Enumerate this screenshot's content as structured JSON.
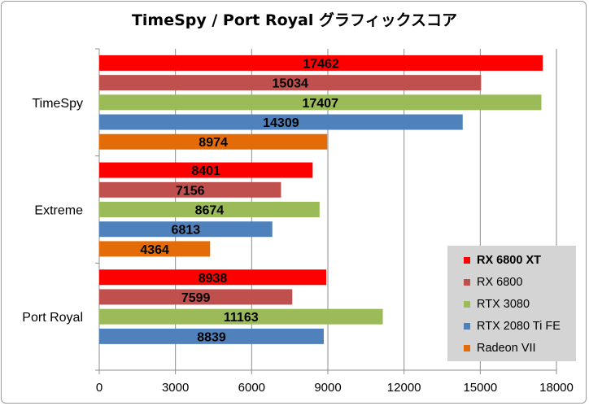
{
  "chart_data": {
    "type": "bar",
    "orientation": "horizontal",
    "title": "TimeSpy / Port Royal グラフィックスコア",
    "categories": [
      "TimeSpy",
      "Extreme",
      "Port Royal"
    ],
    "series": [
      {
        "name": "RX 6800 XT",
        "color": "#ff0000",
        "values": [
          17462,
          8401,
          8938
        ]
      },
      {
        "name": "RX 6800",
        "color": "#c0504d",
        "values": [
          15034,
          7156,
          7599
        ]
      },
      {
        "name": "RTX 3080",
        "color": "#9bbb59",
        "values": [
          17407,
          8674,
          11163
        ]
      },
      {
        "name": "RTX 2080 Ti FE",
        "color": "#4f81bd",
        "values": [
          14309,
          6813,
          8839
        ]
      },
      {
        "name": "Radeon VII",
        "color": "#e36c09",
        "values": [
          8974,
          4364,
          null
        ]
      }
    ],
    "xlim": [
      0,
      18000
    ],
    "xticks": [
      0,
      3000,
      6000,
      9000,
      12000,
      15000,
      18000
    ],
    "grid": "vertical",
    "legend_position": "bottom-right"
  }
}
